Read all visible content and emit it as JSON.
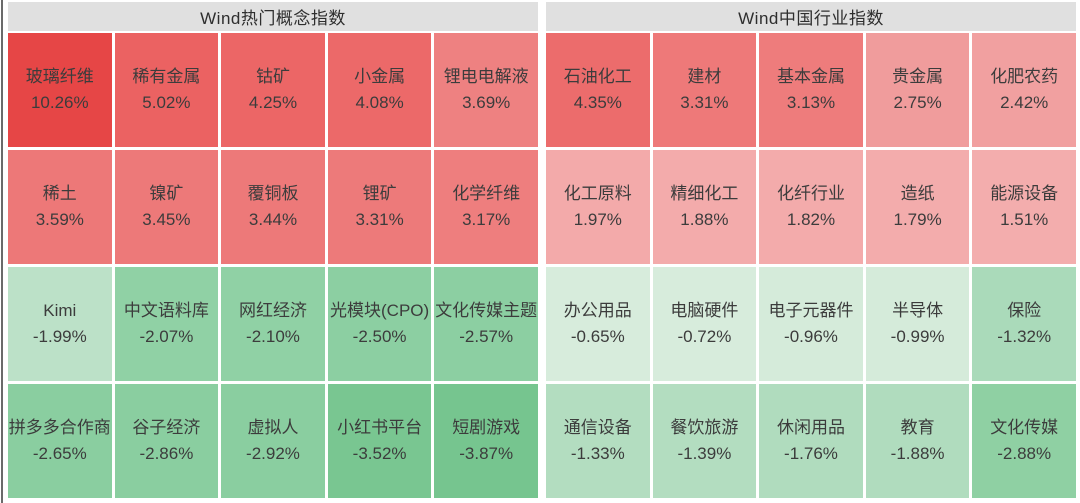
{
  "chart_data": [
    {
      "type": "heatmap",
      "title": "Wind热门概念指数",
      "rows": 4,
      "cols": 5,
      "value_unit": "%",
      "legend": "red = gain, green = loss",
      "cells": [
        {
          "label": "玻璃纤维",
          "change": 10.26,
          "display": "10.26%",
          "color": "#e64646"
        },
        {
          "label": "稀有金属",
          "change": 5.02,
          "display": "5.02%",
          "color": "#eb6262"
        },
        {
          "label": "钴矿",
          "change": 4.25,
          "display": "4.25%",
          "color": "#ec6666"
        },
        {
          "label": "小金属",
          "change": 4.08,
          "display": "4.08%",
          "color": "#ec6969"
        },
        {
          "label": "锂电电解液",
          "change": 3.69,
          "display": "3.69%",
          "color": "#ee8181"
        },
        {
          "label": "稀土",
          "change": 3.59,
          "display": "3.59%",
          "color": "#ed7878"
        },
        {
          "label": "镍矿",
          "change": 3.45,
          "display": "3.45%",
          "color": "#ed7979"
        },
        {
          "label": "覆铜板",
          "change": 3.44,
          "display": "3.44%",
          "color": "#ed7979"
        },
        {
          "label": "锂矿",
          "change": 3.31,
          "display": "3.31%",
          "color": "#ed7a7a"
        },
        {
          "label": "化学纤维",
          "change": 3.17,
          "display": "3.17%",
          "color": "#ee7e7e"
        },
        {
          "label": "Kimi",
          "change": -1.99,
          "display": "-1.99%",
          "color": "#bce1c8"
        },
        {
          "label": "中文语料库",
          "change": -2.07,
          "display": "-2.07%",
          "color": "#90d1a5"
        },
        {
          "label": "网红经济",
          "change": -2.1,
          "display": "-2.10%",
          "color": "#90d1a5"
        },
        {
          "label": "光模块(CPO)",
          "change": -2.5,
          "display": "-2.50%",
          "color": "#8ccfa2"
        },
        {
          "label": "文化传媒主题",
          "change": -2.57,
          "display": "-2.57%",
          "color": "#8ccfa2"
        },
        {
          "label": "拼多多合作商",
          "change": -2.65,
          "display": "-2.65%",
          "color": "#8acea0"
        },
        {
          "label": "谷子经济",
          "change": -2.86,
          "display": "-2.86%",
          "color": "#8acea0"
        },
        {
          "label": "虚拟人",
          "change": -2.92,
          "display": "-2.92%",
          "color": "#8acea0"
        },
        {
          "label": "小红书平台",
          "change": -3.52,
          "display": "-3.52%",
          "color": "#79c691"
        },
        {
          "label": "短剧游戏",
          "change": -3.87,
          "display": "-3.87%",
          "color": "#76c58f"
        }
      ]
    },
    {
      "type": "heatmap",
      "title": "Wind中国行业指数",
      "rows": 4,
      "cols": 5,
      "value_unit": "%",
      "legend": "red = gain, green = loss",
      "cells": [
        {
          "label": "石油化工",
          "change": 4.35,
          "display": "4.35%",
          "color": "#ec6c6c"
        },
        {
          "label": "建材",
          "change": 3.31,
          "display": "3.31%",
          "color": "#ee7979"
        },
        {
          "label": "基本金属",
          "change": 3.13,
          "display": "3.13%",
          "color": "#ee7c7c"
        },
        {
          "label": "贵金属",
          "change": 2.75,
          "display": "2.75%",
          "color": "#f09c9c"
        },
        {
          "label": "化肥农药",
          "change": 2.42,
          "display": "2.42%",
          "color": "#f1a0a0"
        },
        {
          "label": "化工原料",
          "change": 1.97,
          "display": "1.97%",
          "color": "#f3aaaa"
        },
        {
          "label": "精细化工",
          "change": 1.88,
          "display": "1.88%",
          "color": "#f3abab"
        },
        {
          "label": "化纤行业",
          "change": 1.82,
          "display": "1.82%",
          "color": "#f3abab"
        },
        {
          "label": "造纸",
          "change": 1.79,
          "display": "1.79%",
          "color": "#f3acac"
        },
        {
          "label": "能源设备",
          "change": 1.51,
          "display": "1.51%",
          "color": "#f3adad"
        },
        {
          "label": "办公用品",
          "change": -0.65,
          "display": "-0.65%",
          "color": "#d7ecdc"
        },
        {
          "label": "电脑硬件",
          "change": -0.72,
          "display": "-0.72%",
          "color": "#d7ecdc"
        },
        {
          "label": "电子元器件",
          "change": -0.96,
          "display": "-0.96%",
          "color": "#d5ebda"
        },
        {
          "label": "半导体",
          "change": -0.99,
          "display": "-0.99%",
          "color": "#d5ebda"
        },
        {
          "label": "保险",
          "change": -1.32,
          "display": "-1.32%",
          "color": "#aadaba"
        },
        {
          "label": "通信设备",
          "change": -1.33,
          "display": "-1.33%",
          "color": "#b3ddc0"
        },
        {
          "label": "餐饮旅游",
          "change": -1.39,
          "display": "-1.39%",
          "color": "#b3ddc0"
        },
        {
          "label": "休闲用品",
          "change": -1.76,
          "display": "-1.76%",
          "color": "#b0dcbe"
        },
        {
          "label": "教育",
          "change": -1.88,
          "display": "-1.88%",
          "color": "#b0dcbe"
        },
        {
          "label": "文化传媒",
          "change": -2.88,
          "display": "-2.88%",
          "color": "#8fd0a3"
        }
      ]
    }
  ],
  "colors": {
    "gain_max": "#e64646",
    "gain_min": "#f3adad",
    "loss_min": "#d7ecdc",
    "loss_max": "#76c58f",
    "header_bg": "#e0e0e0",
    "text": "#3c3c3c"
  }
}
